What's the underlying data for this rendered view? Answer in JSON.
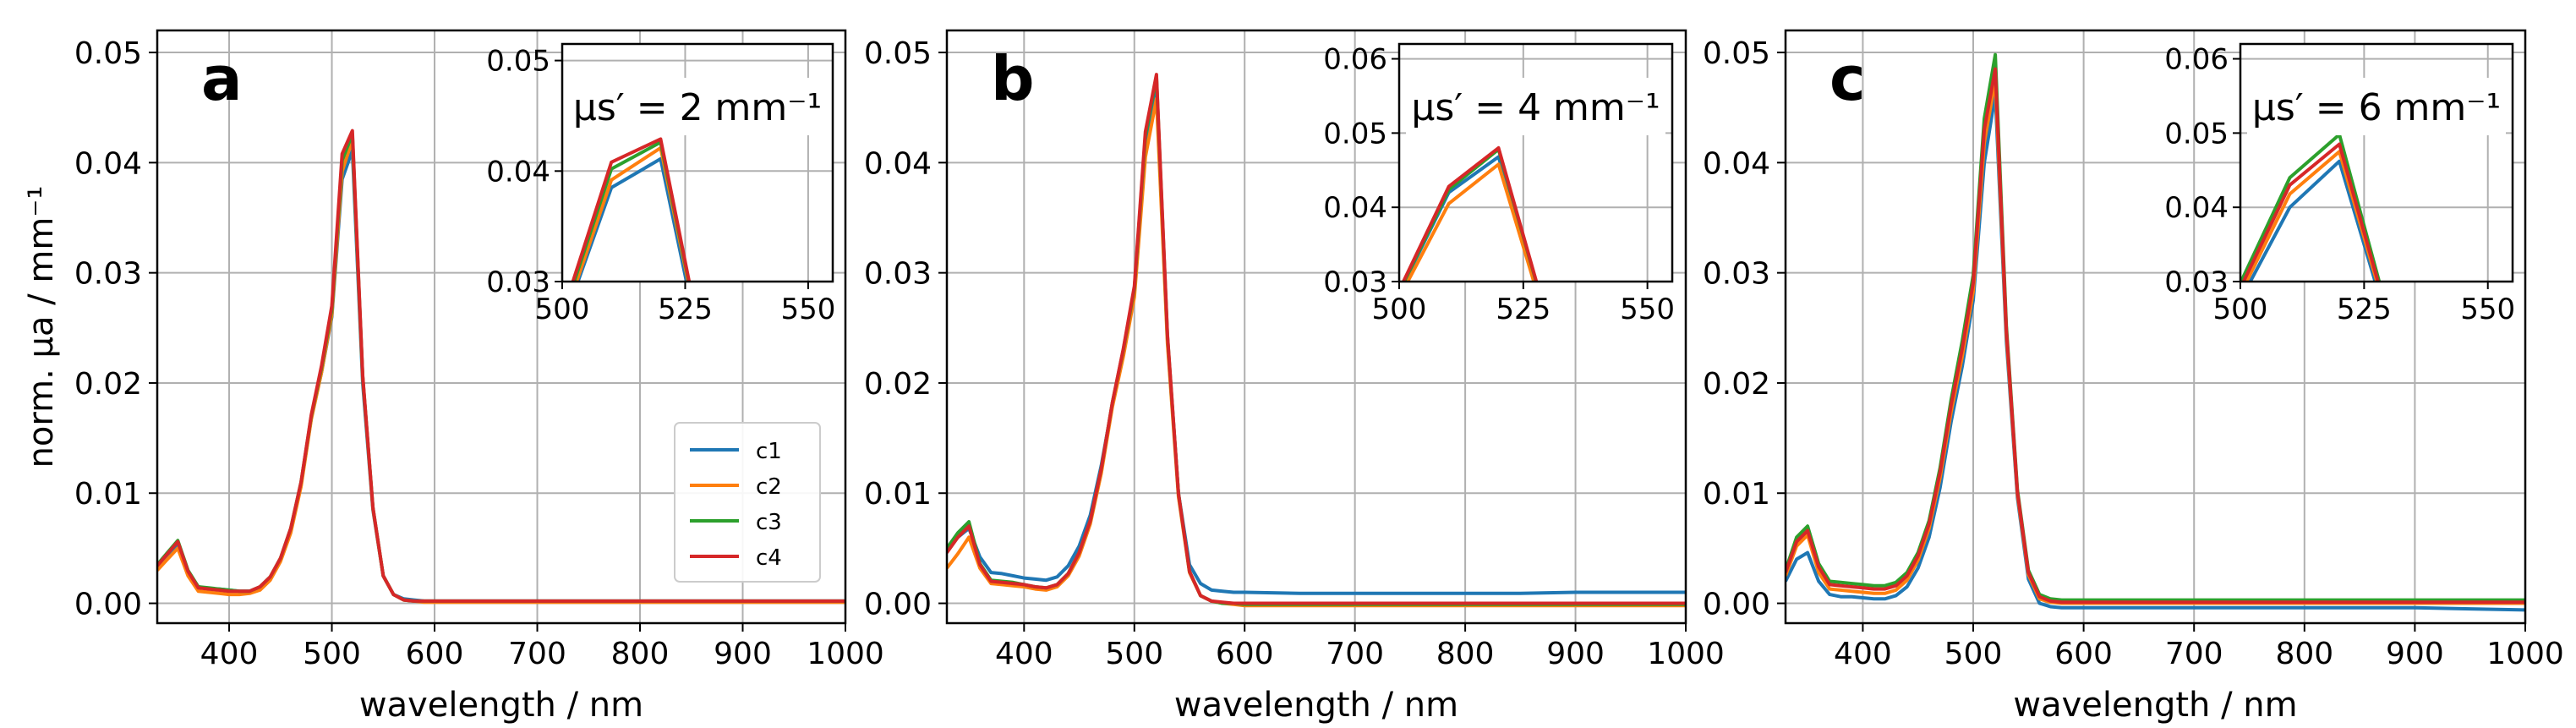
{
  "figure": {
    "ylabel": "norm. μa / mm⁻¹",
    "xlabel": "wavelength / nm",
    "legend": [
      "c1",
      "c2",
      "c3",
      "c4"
    ],
    "colors": {
      "c1": "#1f77b4",
      "c2": "#ff7f0e",
      "c3": "#2ca02c",
      "c4": "#d62728",
      "grid": "#b0b0b0"
    }
  },
  "chart_data": [
    {
      "type": "line",
      "panel": "a",
      "xlabel": "wavelength / nm",
      "ylabel": "norm. μa / mm⁻¹",
      "xlim": [
        330,
        1000
      ],
      "ylim": [
        -0.0018,
        0.052
      ],
      "xticks": [
        400,
        500,
        600,
        700,
        800,
        900,
        1000
      ],
      "yticks": [
        0.0,
        0.01,
        0.02,
        0.03,
        0.04,
        0.05
      ],
      "ytick_labels": [
        "0.00",
        "0.01",
        "0.02",
        "0.03",
        "0.04",
        "0.05"
      ],
      "grid": true,
      "legend_position": "lower-right",
      "x": [
        330,
        340,
        350,
        360,
        370,
        380,
        390,
        400,
        410,
        420,
        430,
        440,
        450,
        460,
        470,
        480,
        490,
        500,
        510,
        520,
        530,
        540,
        550,
        560,
        570,
        580,
        590,
        600,
        650,
        700,
        750,
        800,
        850,
        900,
        950,
        1000
      ],
      "series": [
        {
          "name": "c1",
          "values": [
            0.0033,
            0.0043,
            0.0054,
            0.0028,
            0.0015,
            0.0013,
            0.0013,
            0.0012,
            0.0011,
            0.0011,
            0.0014,
            0.0023,
            0.004,
            0.0066,
            0.0108,
            0.0168,
            0.021,
            0.026,
            0.0385,
            0.0411,
            0.02,
            0.0085,
            0.0025,
            0.0008,
            0.0004,
            0.0003,
            0.0002,
            0.0002,
            0.0002,
            0.0002,
            0.0002,
            0.0002,
            0.0002,
            0.0002,
            0.0002,
            0.0002
          ]
        },
        {
          "name": "c2",
          "values": [
            0.003,
            0.004,
            0.005,
            0.0025,
            0.0011,
            0.001,
            0.0009,
            0.0008,
            0.0008,
            0.0009,
            0.0012,
            0.0021,
            0.0038,
            0.0064,
            0.0106,
            0.0167,
            0.021,
            0.0262,
            0.0392,
            0.0421,
            0.0205,
            0.0086,
            0.0025,
            0.0008,
            0.0003,
            0.0002,
            0.0001,
            0.0001,
            0.0001,
            0.0001,
            0.0001,
            0.0001,
            0.0001,
            0.0001,
            0.0001,
            0.0001
          ]
        },
        {
          "name": "c3",
          "values": [
            0.0035,
            0.0046,
            0.0057,
            0.003,
            0.0015,
            0.0014,
            0.0013,
            0.0012,
            0.0011,
            0.0011,
            0.0015,
            0.0024,
            0.0041,
            0.0068,
            0.011,
            0.017,
            0.0214,
            0.0267,
            0.0402,
            0.0426,
            0.0206,
            0.0087,
            0.0025,
            0.0008,
            0.0003,
            0.0002,
            0.0002,
            0.0002,
            0.0002,
            0.0002,
            0.0002,
            0.0002,
            0.0002,
            0.0002,
            0.0002,
            0.0002
          ]
        },
        {
          "name": "c4",
          "values": [
            0.0034,
            0.0045,
            0.0056,
            0.0029,
            0.0014,
            0.0013,
            0.0012,
            0.0011,
            0.0011,
            0.0011,
            0.0015,
            0.0024,
            0.0041,
            0.0068,
            0.011,
            0.0171,
            0.0216,
            0.027,
            0.0408,
            0.0429,
            0.0207,
            0.0087,
            0.0025,
            0.0008,
            0.0003,
            0.0002,
            0.0002,
            0.0002,
            0.0002,
            0.0002,
            0.0002,
            0.0002,
            0.0002,
            0.0002,
            0.0002,
            0.0002
          ]
        }
      ],
      "inset": {
        "label": "μs′ = 2 mm⁻¹",
        "xlim": [
          500,
          555
        ],
        "ylim": [
          0.03,
          0.0515
        ],
        "xticks": [
          500,
          525,
          550
        ],
        "yticks": [
          0.03,
          0.04,
          0.05
        ],
        "ytick_labels": [
          "0.03",
          "0.04",
          "0.05"
        ]
      }
    },
    {
      "type": "line",
      "panel": "b",
      "xlabel": "wavelength / nm",
      "xlim": [
        330,
        1000
      ],
      "ylim": [
        -0.0018,
        0.052
      ],
      "xticks": [
        400,
        500,
        600,
        700,
        800,
        900,
        1000
      ],
      "yticks": [
        0.0,
        0.01,
        0.02,
        0.03,
        0.04,
        0.05
      ],
      "ytick_labels": [
        "0.00",
        "0.01",
        "0.02",
        "0.03",
        "0.04",
        "0.05"
      ],
      "grid": true,
      "x": [
        330,
        340,
        350,
        360,
        370,
        380,
        390,
        400,
        410,
        420,
        430,
        440,
        450,
        460,
        470,
        480,
        490,
        500,
        510,
        520,
        530,
        540,
        550,
        560,
        570,
        580,
        590,
        600,
        650,
        700,
        750,
        800,
        850,
        900,
        950,
        1000
      ],
      "series": [
        {
          "name": "c1",
          "values": [
            0.0048,
            0.006,
            0.0068,
            0.0042,
            0.0028,
            0.0027,
            0.0025,
            0.0023,
            0.0022,
            0.0021,
            0.0024,
            0.0034,
            0.0052,
            0.008,
            0.0125,
            0.018,
            0.023,
            0.0285,
            0.042,
            0.0468,
            0.024,
            0.01,
            0.0035,
            0.0018,
            0.0012,
            0.0011,
            0.001,
            0.001,
            0.0009,
            0.0009,
            0.0009,
            0.0009,
            0.0009,
            0.001,
            0.001,
            0.001
          ]
        },
        {
          "name": "c2",
          "values": [
            0.0032,
            0.0045,
            0.006,
            0.0032,
            0.0018,
            0.0017,
            0.0016,
            0.0015,
            0.0013,
            0.0012,
            0.0015,
            0.0025,
            0.0043,
            0.0072,
            0.0118,
            0.0178,
            0.0224,
            0.0278,
            0.0405,
            0.0458,
            0.0236,
            0.0097,
            0.0028,
            0.0007,
            0.0002,
            0.0,
            -0.0001,
            -0.0002,
            -0.0002,
            -0.0002,
            -0.0002,
            -0.0002,
            -0.0002,
            -0.0002,
            -0.0002,
            -0.0002
          ]
        },
        {
          "name": "c3",
          "values": [
            0.005,
            0.0064,
            0.0074,
            0.0036,
            0.0021,
            0.002,
            0.0019,
            0.0017,
            0.0015,
            0.0014,
            0.0017,
            0.0027,
            0.0046,
            0.0075,
            0.0122,
            0.0182,
            0.023,
            0.0286,
            0.0424,
            0.0478,
            0.0243,
            0.01,
            0.0029,
            0.0007,
            0.0002,
            0.0,
            0.0,
            -0.0001,
            -0.0001,
            -0.0001,
            -0.0001,
            -0.0001,
            -0.0001,
            -0.0001,
            -0.0001,
            -0.0001
          ]
        },
        {
          "name": "c4",
          "values": [
            0.0046,
            0.006,
            0.007,
            0.0035,
            0.002,
            0.0019,
            0.0018,
            0.0017,
            0.0015,
            0.0014,
            0.0017,
            0.0027,
            0.0046,
            0.0075,
            0.0122,
            0.0182,
            0.0231,
            0.0288,
            0.0428,
            0.048,
            0.0244,
            0.01,
            0.0029,
            0.0007,
            0.0002,
            0.0001,
            0.0,
            0.0,
            0.0,
            0.0,
            0.0,
            0.0,
            0.0,
            0.0,
            0.0,
            0.0
          ]
        }
      ],
      "inset": {
        "label": "μs′ = 4 mm⁻¹",
        "xlim": [
          500,
          555
        ],
        "ylim": [
          0.03,
          0.062
        ],
        "xticks": [
          500,
          525,
          550
        ],
        "yticks": [
          0.03,
          0.04,
          0.05,
          0.06
        ],
        "ytick_labels": [
          "0.03",
          "0.04",
          "0.05",
          "0.06"
        ]
      }
    },
    {
      "type": "line",
      "panel": "c",
      "xlabel": "wavelength / nm",
      "xlim": [
        330,
        1000
      ],
      "ylim": [
        -0.0018,
        0.052
      ],
      "xticks": [
        400,
        500,
        600,
        700,
        800,
        900,
        1000
      ],
      "yticks": [
        0.0,
        0.01,
        0.02,
        0.03,
        0.04,
        0.05
      ],
      "ytick_labels": [
        "0.00",
        "0.01",
        "0.02",
        "0.03",
        "0.04",
        "0.05"
      ],
      "grid": true,
      "x": [
        330,
        340,
        350,
        360,
        370,
        380,
        390,
        400,
        410,
        420,
        430,
        440,
        450,
        460,
        470,
        480,
        490,
        500,
        510,
        520,
        530,
        540,
        550,
        560,
        570,
        580,
        590,
        600,
        650,
        700,
        750,
        800,
        850,
        900,
        950,
        1000
      ],
      "series": [
        {
          "name": "c1",
          "values": [
            0.002,
            0.004,
            0.0046,
            0.002,
            0.0008,
            0.0006,
            0.0006,
            0.0005,
            0.0004,
            0.0004,
            0.0007,
            0.0015,
            0.0032,
            0.006,
            0.0105,
            0.0165,
            0.0215,
            0.0275,
            0.04,
            0.0462,
            0.0238,
            0.0096,
            0.0022,
            0.0,
            -0.0003,
            -0.0004,
            -0.0004,
            -0.0004,
            -0.0004,
            -0.0004,
            -0.0004,
            -0.0004,
            -0.0004,
            -0.0004,
            -0.0005,
            -0.0006
          ]
        },
        {
          "name": "c2",
          "values": [
            0.0025,
            0.0052,
            0.0062,
            0.0028,
            0.0013,
            0.0012,
            0.0011,
            0.001,
            0.0009,
            0.0009,
            0.0012,
            0.0021,
            0.0039,
            0.0068,
            0.0114,
            0.0174,
            0.0224,
            0.0283,
            0.0418,
            0.0475,
            0.0244,
            0.0099,
            0.0026,
            0.0004,
            0.0001,
            0.0,
            0.0,
            0.0,
            0.0,
            0.0,
            0.0,
            0.0,
            0.0,
            0.0,
            0.0,
            0.0
          ]
        },
        {
          "name": "c3",
          "values": [
            0.003,
            0.006,
            0.007,
            0.0036,
            0.002,
            0.0019,
            0.0018,
            0.0017,
            0.0016,
            0.0016,
            0.0019,
            0.0028,
            0.0046,
            0.0075,
            0.0123,
            0.0185,
            0.0238,
            0.0298,
            0.044,
            0.0498,
            0.0252,
            0.0103,
            0.003,
            0.0008,
            0.0004,
            0.0003,
            0.0003,
            0.0003,
            0.0003,
            0.0003,
            0.0003,
            0.0003,
            0.0003,
            0.0003,
            0.0003,
            0.0003
          ]
        },
        {
          "name": "c4",
          "values": [
            0.0028,
            0.0056,
            0.0066,
            0.0033,
            0.0017,
            0.0016,
            0.0015,
            0.0014,
            0.0013,
            0.0013,
            0.0016,
            0.0025,
            0.0043,
            0.0072,
            0.0119,
            0.018,
            0.0231,
            0.0291,
            0.043,
            0.0485,
            0.0248,
            0.0101,
            0.0028,
            0.0006,
            0.0002,
            0.0001,
            0.0001,
            0.0001,
            0.0001,
            0.0001,
            0.0001,
            0.0001,
            0.0001,
            0.0001,
            0.0001,
            0.0001
          ]
        }
      ],
      "inset": {
        "label": "μs′ = 6 mm⁻¹",
        "xlim": [
          500,
          555
        ],
        "ylim": [
          0.03,
          0.062
        ],
        "xticks": [
          500,
          525,
          550
        ],
        "yticks": [
          0.03,
          0.04,
          0.05,
          0.06
        ],
        "ytick_labels": [
          "0.03",
          "0.04",
          "0.05",
          "0.06"
        ]
      }
    }
  ]
}
